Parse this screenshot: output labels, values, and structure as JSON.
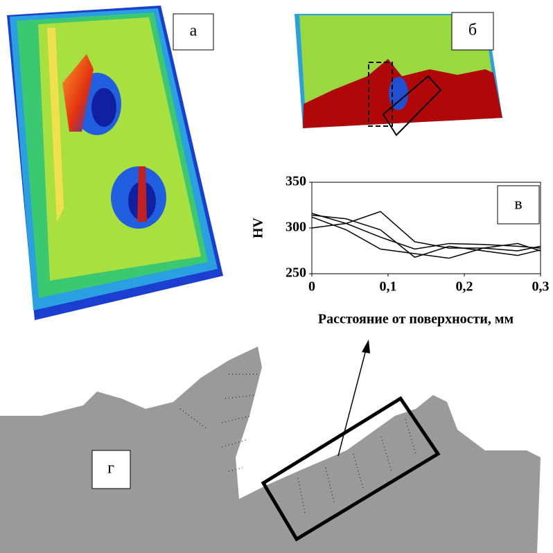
{
  "panel_labels": [
    "а",
    "б",
    "г"
  ],
  "chart_data": {
    "type": "line",
    "annotation": "в",
    "x_label": "Расстояние от  поверхности, мм",
    "y_label": "HV",
    "x": [
      0,
      0.045,
      0.09,
      0.135,
      0.18,
      0.225,
      0.27,
      0.3
    ],
    "series": [
      {
        "color": "#000000",
        "values": [
          316,
          305,
          290,
          277,
          283,
          282,
          280,
          278
        ]
      },
      {
        "color": "#000000",
        "values": [
          314,
          310,
          298,
          268,
          280,
          275,
          270,
          276
        ]
      },
      {
        "color": "#000000",
        "values": [
          300,
          305,
          318,
          285,
          278,
          278,
          283,
          275
        ]
      },
      {
        "color": "#000000",
        "values": [
          312,
          298,
          277,
          272,
          267,
          278,
          275,
          280
        ]
      }
    ],
    "xlim": [
      0,
      0.3
    ],
    "xticks": [
      0,
      {
        "value": 0.1,
        "label": "0,1"
      },
      {
        "value": 0.2,
        "label": "0,2"
      },
      {
        "value": 0.3,
        "label": "0,3"
      }
    ],
    "ylim": [
      250,
      350
    ],
    "yticks": [
      250,
      300,
      350
    ]
  }
}
